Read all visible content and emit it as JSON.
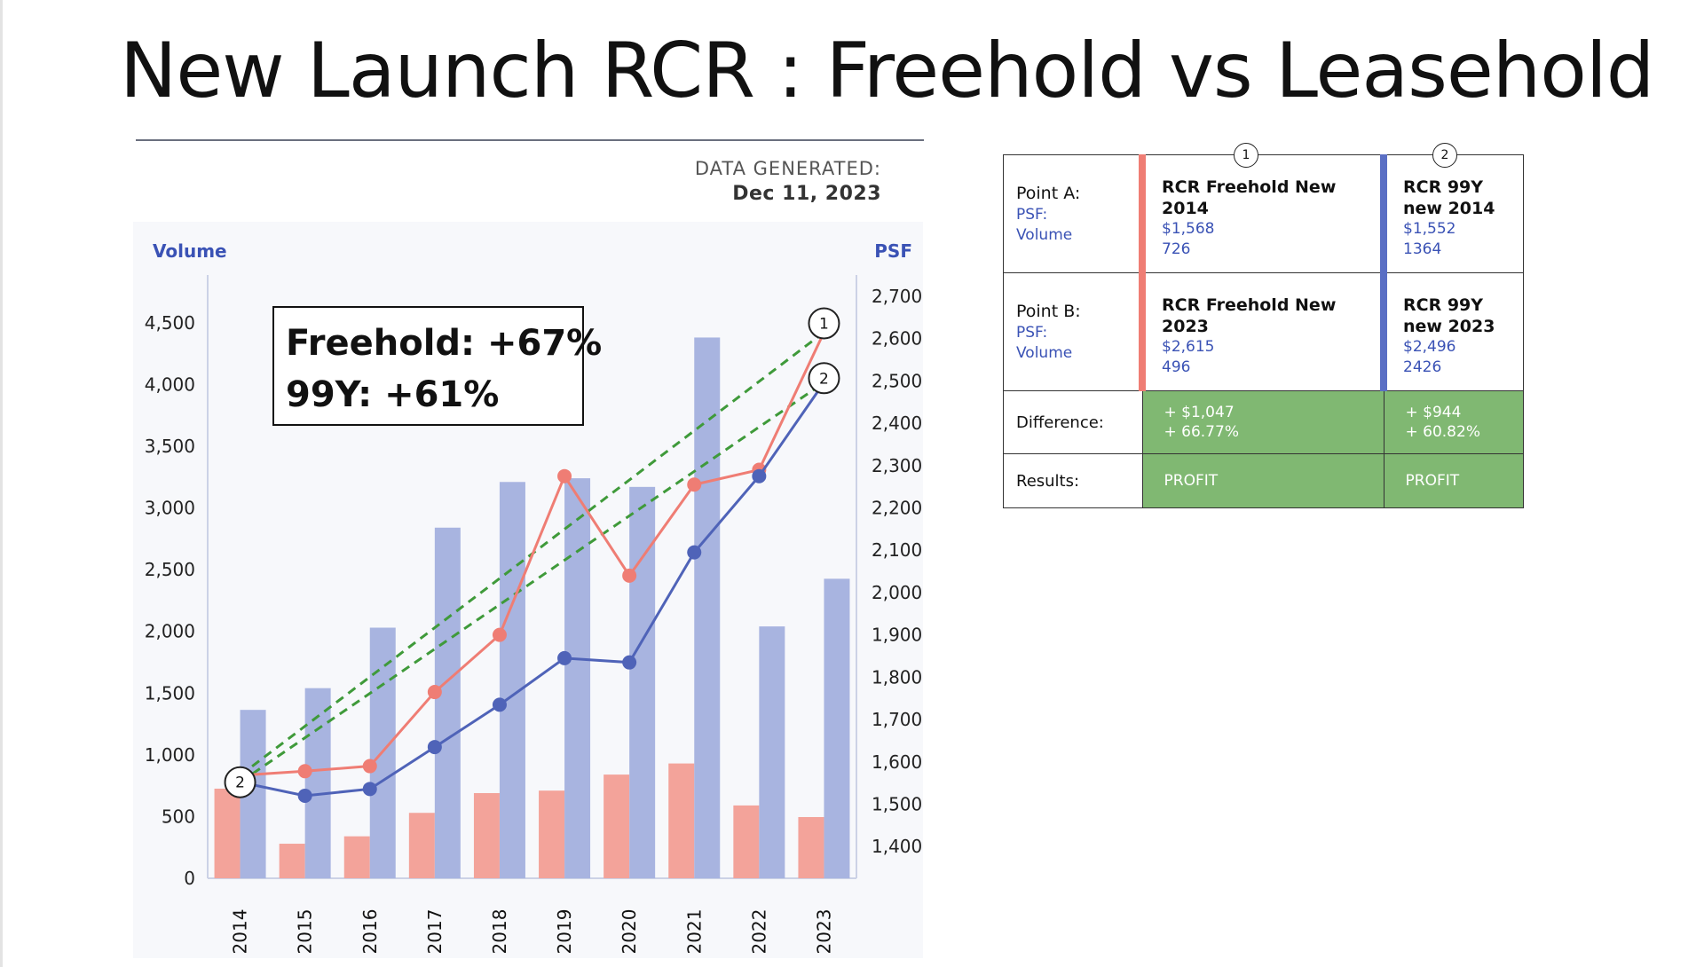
{
  "slide": {
    "title": "New Launch RCR : Freehold vs Leasehold",
    "data_generated_label": "DATA GENERATED:",
    "data_generated_date": "Dec 11, 2023"
  },
  "chart_data": {
    "type": "bar",
    "categories": [
      "2014",
      "2015",
      "2016",
      "2017",
      "2018",
      "2019",
      "2020",
      "2021",
      "2022",
      "2023"
    ],
    "ylabel": "Volume",
    "y2label": "PSF",
    "ylim": [
      0,
      4800
    ],
    "y2lim": [
      1325,
      2725
    ],
    "yticks": [
      "0",
      "500",
      "1,000",
      "1,500",
      "2,000",
      "2,500",
      "3,000",
      "3,500",
      "4,000",
      "4,500"
    ],
    "y2ticks": [
      "1,400",
      "1,500",
      "1,600",
      "1,700",
      "1,800",
      "1,900",
      "2,000",
      "2,100",
      "2,200",
      "2,300",
      "2,400",
      "2,500",
      "2,600",
      "2,700"
    ],
    "series": [
      {
        "name": "RCR Freehold New",
        "kind": "bar",
        "axis": "left",
        "color": "#f3a39a",
        "values": [
          726,
          280,
          340,
          530,
          690,
          710,
          840,
          930,
          590,
          496
        ]
      },
      {
        "name": "RCR 99Y new",
        "kind": "bar",
        "axis": "left",
        "color": "#a8b4e0",
        "values": [
          1364,
          1540,
          2030,
          2840,
          3210,
          3240,
          3170,
          4380,
          2040,
          2426
        ]
      },
      {
        "name": "RCR Freehold New",
        "kind": "line",
        "axis": "right",
        "color": "#ef7d74",
        "values": [
          1568,
          1578,
          1590,
          1765,
          1900,
          2275,
          2040,
          2255,
          2290,
          2615
        ]
      },
      {
        "name": "RCR 99Y new",
        "kind": "line",
        "axis": "right",
        "color": "#4f63b8",
        "values": [
          1552,
          1520,
          1536,
          1635,
          1735,
          1845,
          1835,
          2095,
          2275,
          2496
        ]
      }
    ],
    "trend_lines": [
      {
        "from": [
          "2014",
          1568
        ],
        "to": [
          "2023",
          2615
        ],
        "color": "#3f9a3a"
      },
      {
        "from": [
          "2014",
          1552
        ],
        "to": [
          "2023",
          2496
        ],
        "color": "#3f9a3a"
      }
    ],
    "annotation": {
      "lines": [
        "Freehold: +67%",
        "99Y: +61%"
      ]
    },
    "markers": [
      {
        "label": "1",
        "at": [
          "2023",
          2615
        ]
      },
      {
        "label": "2",
        "at": [
          "2023",
          2496
        ]
      },
      {
        "label": "2",
        "at": [
          "2014",
          1552
        ]
      }
    ]
  },
  "table": {
    "marker_1": "1",
    "marker_2": "2",
    "point_a": {
      "label": "Point A:",
      "psf_label": "PSF:",
      "volume_label": "Volume",
      "fh_title": "RCR Freehold New 2014",
      "fh_psf": "$1,568",
      "fh_volume": "726",
      "ly_title": "RCR 99Y new 2014",
      "ly_psf": "$1,552",
      "ly_volume": "1364"
    },
    "point_b": {
      "label": "Point B:",
      "psf_label": "PSF:",
      "volume_label": "Volume",
      "fh_title": "RCR Freehold New 2023",
      "fh_psf": "$2,615",
      "fh_volume": "496",
      "ly_title": "RCR 99Y new 2023",
      "ly_psf": "$2,496",
      "ly_volume": "2426"
    },
    "difference": {
      "label": "Difference:",
      "fh_amount": "+ $1,047",
      "fh_pct": "+ 66.77%",
      "ly_amount": "+ $944",
      "ly_pct": "+ 60.82%"
    },
    "results": {
      "label": "Results:",
      "fh": "PROFIT",
      "ly": "PROFIT"
    }
  }
}
